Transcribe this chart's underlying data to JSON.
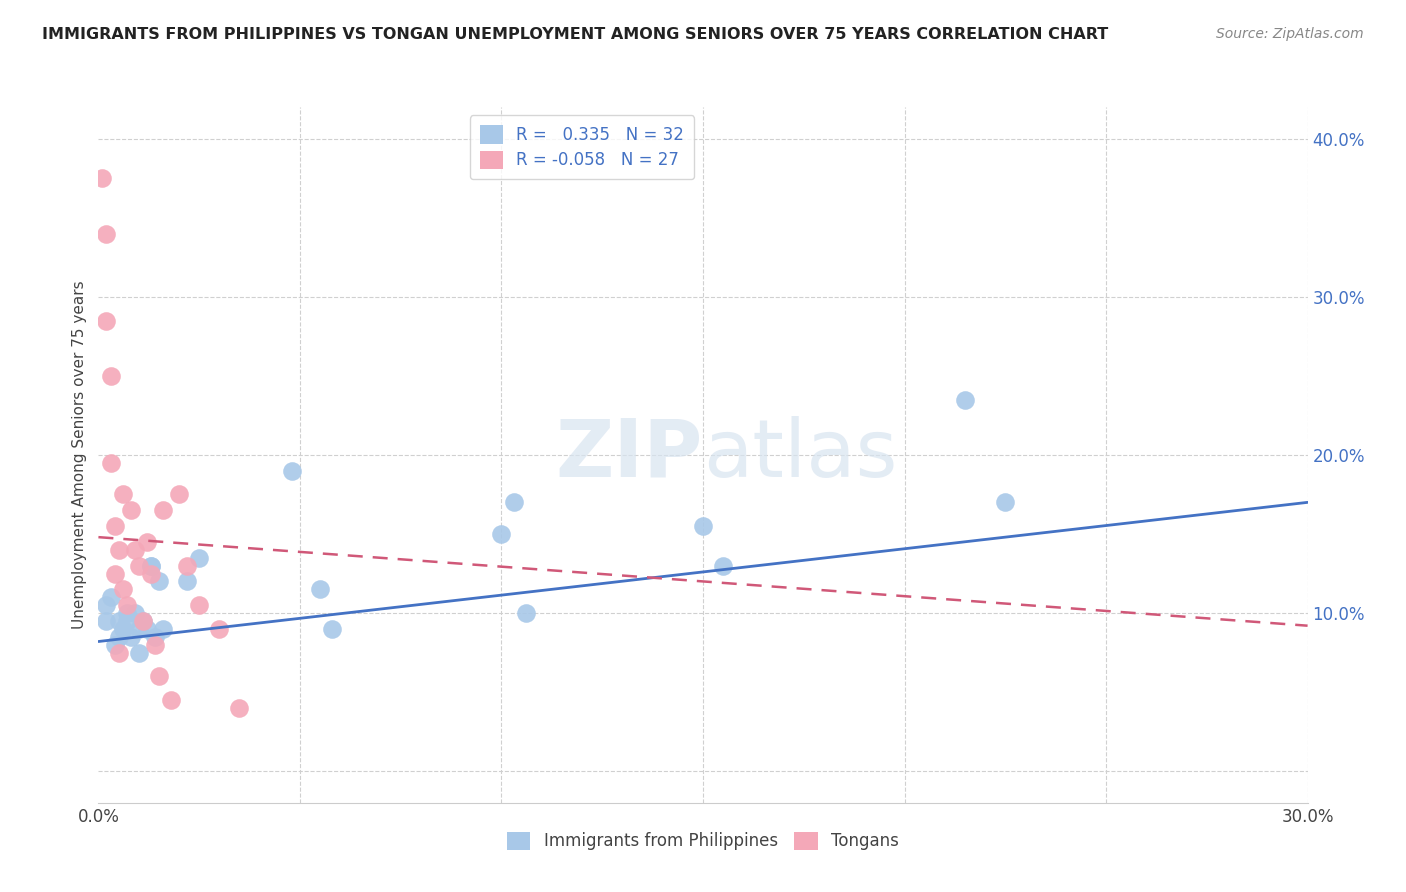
{
  "title": "IMMIGRANTS FROM PHILIPPINES VS TONGAN UNEMPLOYMENT AMONG SENIORS OVER 75 YEARS CORRELATION CHART",
  "source": "Source: ZipAtlas.com",
  "ylabel": "Unemployment Among Seniors over 75 years",
  "xlim": [
    0.0,
    0.3
  ],
  "ylim": [
    -0.02,
    0.42
  ],
  "legend1_r": "0.335",
  "legend1_n": "32",
  "legend2_r": "-0.058",
  "legend2_n": "27",
  "blue_color": "#a8c8e8",
  "pink_color": "#f4a8b8",
  "blue_line_color": "#4472c4",
  "pink_line_color": "#d05878",
  "watermark_zip": "ZIP",
  "watermark_atlas": "atlas",
  "philippines_x": [
    0.002,
    0.002,
    0.003,
    0.004,
    0.005,
    0.005,
    0.006,
    0.007,
    0.007,
    0.008,
    0.009,
    0.01,
    0.01,
    0.011,
    0.012,
    0.013,
    0.013,
    0.014,
    0.015,
    0.016,
    0.022,
    0.025,
    0.048,
    0.055,
    0.058,
    0.1,
    0.103,
    0.106,
    0.15,
    0.155,
    0.215,
    0.225
  ],
  "philippines_y": [
    0.105,
    0.095,
    0.11,
    0.08,
    0.085,
    0.095,
    0.09,
    0.095,
    0.1,
    0.085,
    0.1,
    0.09,
    0.075,
    0.095,
    0.09,
    0.13,
    0.13,
    0.085,
    0.12,
    0.09,
    0.12,
    0.135,
    0.19,
    0.115,
    0.09,
    0.15,
    0.17,
    0.1,
    0.155,
    0.13,
    0.235,
    0.17
  ],
  "tongan_x": [
    0.001,
    0.002,
    0.002,
    0.003,
    0.003,
    0.004,
    0.004,
    0.005,
    0.005,
    0.006,
    0.006,
    0.007,
    0.008,
    0.009,
    0.01,
    0.011,
    0.012,
    0.013,
    0.014,
    0.015,
    0.016,
    0.018,
    0.02,
    0.022,
    0.025,
    0.03,
    0.035
  ],
  "tongan_y": [
    0.375,
    0.34,
    0.285,
    0.25,
    0.195,
    0.155,
    0.125,
    0.14,
    0.075,
    0.115,
    0.175,
    0.105,
    0.165,
    0.14,
    0.13,
    0.095,
    0.145,
    0.125,
    0.08,
    0.06,
    0.165,
    0.045,
    0.175,
    0.13,
    0.105,
    0.09,
    0.04
  ],
  "philippines_line_x": [
    0.0,
    0.3
  ],
  "philippines_line_y": [
    0.082,
    0.17
  ],
  "tongan_line_x": [
    0.0,
    0.3
  ],
  "tongan_line_y": [
    0.148,
    0.092
  ]
}
